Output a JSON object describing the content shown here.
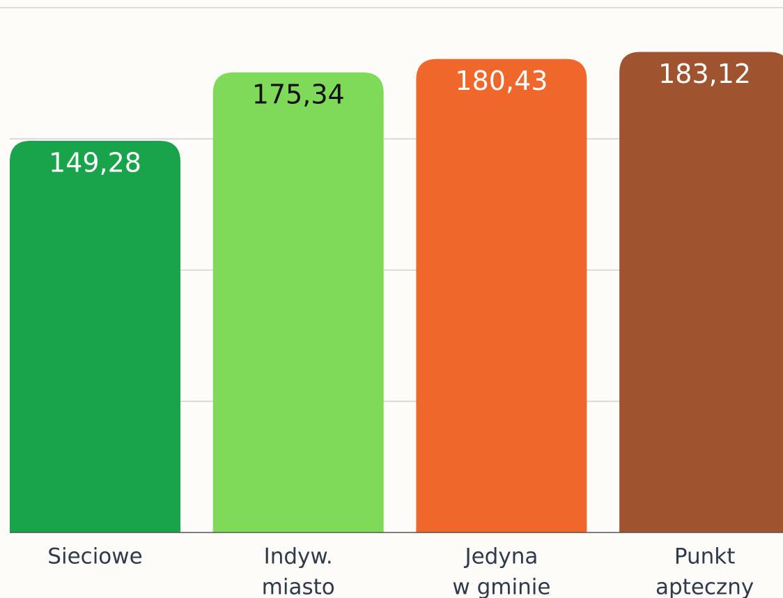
{
  "chart_data": {
    "type": "bar",
    "categories": [
      [
        "Sieciowe"
      ],
      [
        "Indyw.",
        "miasto"
      ],
      [
        "Jedyna",
        "w gminie"
      ],
      [
        "Punkt",
        "apteczny"
      ]
    ],
    "values": [
      149.28,
      175.34,
      180.43,
      183.12
    ],
    "value_labels": [
      "149,28",
      "175,34",
      "180,43",
      "183,12"
    ],
    "colors": [
      "#19a34a",
      "#80da5a",
      "#f0672b",
      "#a0532f"
    ],
    "label_colors": [
      "#ffffff",
      "#111111",
      "#ffffff",
      "#ffffff"
    ],
    "ylim": [
      0,
      200
    ],
    "yticks": [
      0,
      50,
      100,
      150,
      200
    ],
    "grid": true
  }
}
